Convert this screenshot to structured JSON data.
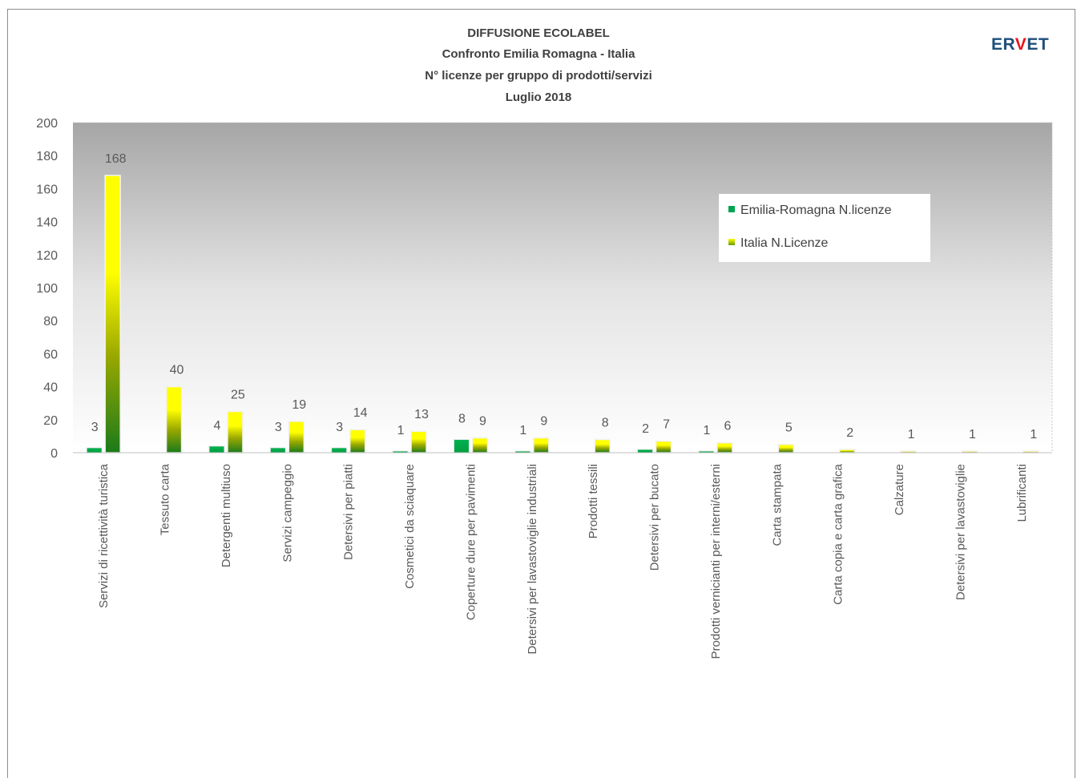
{
  "chart_data": {
    "type": "bar",
    "title": [
      "DIFFUSIONE ECOLABEL",
      "Confronto Emilia Romagna - Italia",
      "N° licenze per gruppo di prodotti/servizi",
      "Luglio 2018"
    ],
    "logo_text": "ERVET",
    "categories": [
      "Servizi di ricettività turistica",
      "Tessuto carta",
      "Detergenti multiuso",
      "Servizi campeggio",
      "Detersivi per piatti",
      "Cosmetici da sciaquare",
      "Coperture dure per pavimenti",
      "Detersivi per lavastoviglie industriali",
      "Prodotti tessili",
      "Detersivi per bucato",
      "Prodotti vernicianti per interni/esterni",
      "Carta stampata",
      "Carta copia e carta grafica",
      "Calzature",
      "Detersivi per lavastoviglie",
      "Lubrificanti"
    ],
    "series": [
      {
        "name": "Emilia-Romagna N.licenze",
        "color": "#00a550",
        "values": [
          3,
          null,
          4,
          3,
          3,
          1,
          8,
          1,
          null,
          2,
          1,
          null,
          null,
          null,
          null,
          null
        ]
      },
      {
        "name": "Italia N.Licenze",
        "color": "#ffff00",
        "values": [
          168,
          40,
          25,
          19,
          14,
          13,
          9,
          9,
          8,
          7,
          6,
          5,
          2,
          1,
          1,
          1
        ]
      }
    ],
    "ylim": [
      0,
      200
    ],
    "yticks": [
      0,
      20,
      40,
      60,
      80,
      100,
      120,
      140,
      160,
      180,
      200
    ],
    "legend": "top-right",
    "grid": false
  }
}
